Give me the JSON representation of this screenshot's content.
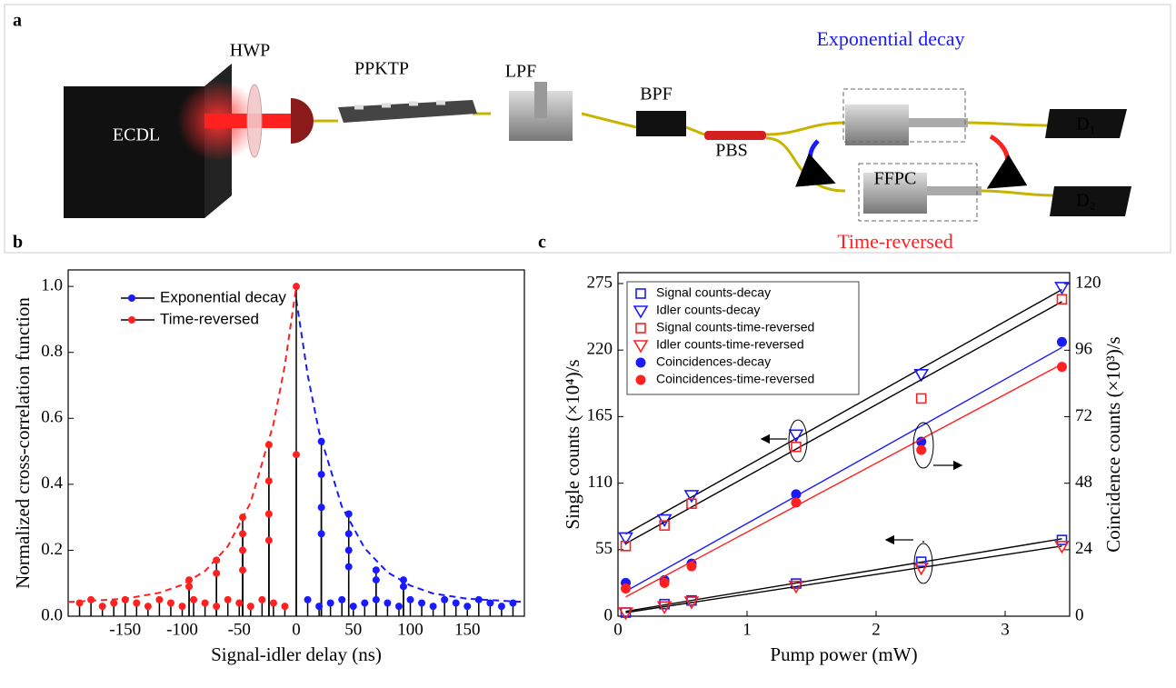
{
  "panels": {
    "a": "a",
    "b": "b",
    "c": "c"
  },
  "diagram": {
    "labels": [
      "ECDL",
      "HWP",
      "PPKTP",
      "LPF",
      "BPF",
      "PBS",
      "FFPC",
      "D₁",
      "D₂"
    ],
    "exponential_label": "Exponential decay",
    "time_reversed_label": "Time-reversed"
  },
  "chart_data": [
    {
      "type": "stem",
      "xlabel": "Signal-idler delay (ns)",
      "ylabel": "Normalized cross-correlation function",
      "xlim": [
        -200,
        200
      ],
      "xticks": [
        -150,
        -100,
        -50,
        0,
        50,
        100,
        150
      ],
      "ylim": [
        0,
        1.05
      ],
      "yticks": [
        {
          "value": 0,
          "label": "0.0"
        },
        0.2,
        0.4,
        0.6,
        0.8,
        {
          "value": 1,
          "label": "1.0"
        }
      ],
      "series": [
        {
          "name": "Exponential decay",
          "color": "#1a1aff",
          "x": [
            22,
            22,
            22,
            22,
            46,
            46,
            46,
            46,
            70,
            70,
            94,
            94,
            10,
            20,
            30,
            40,
            50,
            60,
            70,
            80,
            90,
            100,
            110,
            120,
            130,
            140,
            150,
            160,
            170,
            180,
            190
          ],
          "values": [
            0.53,
            0.43,
            0.33,
            0.25,
            0.31,
            0.25,
            0.2,
            0.15,
            0.14,
            0.11,
            0.11,
            0.09,
            0.05,
            0.03,
            0.04,
            0.05,
            0.03,
            0.04,
            0.05,
            0.04,
            0.03,
            0.05,
            0.04,
            0.03,
            0.05,
            0.04,
            0.03,
            0.05,
            0.04,
            0.03,
            0.04
          ],
          "fit": {
            "x": [
              0,
              10,
              20,
              40,
              60,
              80,
              100,
              120,
              150,
              200
            ],
            "values": [
              0.96,
              0.731,
              0.559,
              0.332,
              0.206,
              0.133,
              0.093,
              0.069,
              0.053,
              0.043
            ]
          }
        },
        {
          "name": "Time-reversed",
          "color": "#ff2020",
          "x": [
            0,
            0,
            -24,
            -24,
            -24,
            -24,
            -47,
            -47,
            -47,
            -47,
            -70,
            -70,
            -94,
            -94,
            -190,
            -180,
            -170,
            -160,
            -150,
            -140,
            -130,
            -120,
            -110,
            -100,
            -90,
            -80,
            -70,
            -60,
            -50,
            -40,
            -30,
            -20,
            -10
          ],
          "values": [
            1.0,
            0.49,
            0.52,
            0.41,
            0.31,
            0.23,
            0.3,
            0.25,
            0.2,
            0.14,
            0.17,
            0.13,
            0.11,
            0.09,
            0.04,
            0.05,
            0.03,
            0.04,
            0.05,
            0.04,
            0.03,
            0.05,
            0.04,
            0.03,
            0.05,
            0.04,
            0.03,
            0.05,
            0.04,
            0.03,
            0.05,
            0.04,
            0.03
          ],
          "fit": {
            "x": [
              -200,
              -150,
              -120,
              -100,
              -80,
              -60,
              -40,
              -20,
              -10,
              0
            ],
            "values": [
              0.043,
              0.053,
              0.071,
              0.095,
              0.137,
              0.212,
              0.345,
              0.583,
              0.76,
              1.0
            ]
          }
        }
      ]
    },
    {
      "type": "scatter",
      "xlabel": "Pump power (mW)",
      "ylabel": "Single counts (×10⁴)/s",
      "y2label": "Coincidence counts (×10³)/s",
      "xlim": [
        0,
        3.5
      ],
      "xticks": [
        0,
        1,
        2,
        3
      ],
      "ylim": [
        0,
        284
      ],
      "yticks": [
        0,
        55,
        110,
        165,
        220,
        275
      ],
      "y2lim": [
        0,
        124
      ],
      "y2ticks": [
        0,
        24,
        48,
        72,
        96,
        120
      ],
      "x": [
        0.06,
        0.36,
        0.57,
        1.38,
        2.35,
        3.44
      ],
      "series": [
        {
          "name": "Signal counts-decay",
          "color": "#1a1aff",
          "marker": "square",
          "values": [
            3,
            10,
            13,
            27,
            45,
            63
          ],
          "fit_color": "#000000",
          "fit": {
            "x": [
              0.06,
              3.44
            ],
            "values": [
              4,
              64
            ]
          }
        },
        {
          "name": "Idler counts-decay",
          "color": "#1a1aff",
          "marker": "triangle",
          "values": [
            65,
            80,
            100,
            150,
            200,
            272
          ],
          "fit_color": "#000000",
          "fit": {
            "x": [
              0.06,
              3.44
            ],
            "values": [
              68,
              270
            ]
          }
        },
        {
          "name": "Signal counts-time-reversed",
          "color": "#ff2020",
          "marker": "square",
          "values": [
            58,
            75,
            93,
            140,
            180,
            262
          ],
          "fit_color": "#000000",
          "fit": {
            "x": [
              0.06,
              3.44
            ],
            "values": [
              60,
              260
            ]
          }
        },
        {
          "name": "Idler counts-time-reversed",
          "color": "#ff2020",
          "marker": "triangle",
          "values": [
            3,
            8,
            12,
            25,
            40,
            58
          ],
          "fit_color": "#000000",
          "fit": {
            "x": [
              0.06,
              3.44
            ],
            "values": [
              3,
              58
            ]
          }
        },
        {
          "name": "Coincidences-decay",
          "color": "#1a1aff",
          "marker": "circle",
          "axis": "y2",
          "values": [
            12,
            13,
            19,
            44,
            63,
            99
          ],
          "fit_color": "#1a1aff",
          "fit": {
            "x": [
              0.06,
              3.44
            ],
            "values": [
              9,
              97
            ]
          }
        },
        {
          "name": "Coincidences-time-reversed",
          "color": "#ff2020",
          "marker": "circle",
          "axis": "y2",
          "values": [
            10,
            12,
            18,
            41,
            60,
            90
          ],
          "fit_color": "#ff2020",
          "fit": {
            "x": [
              0.06,
              3.44
            ],
            "values": [
              7,
              91
            ]
          }
        }
      ]
    }
  ]
}
